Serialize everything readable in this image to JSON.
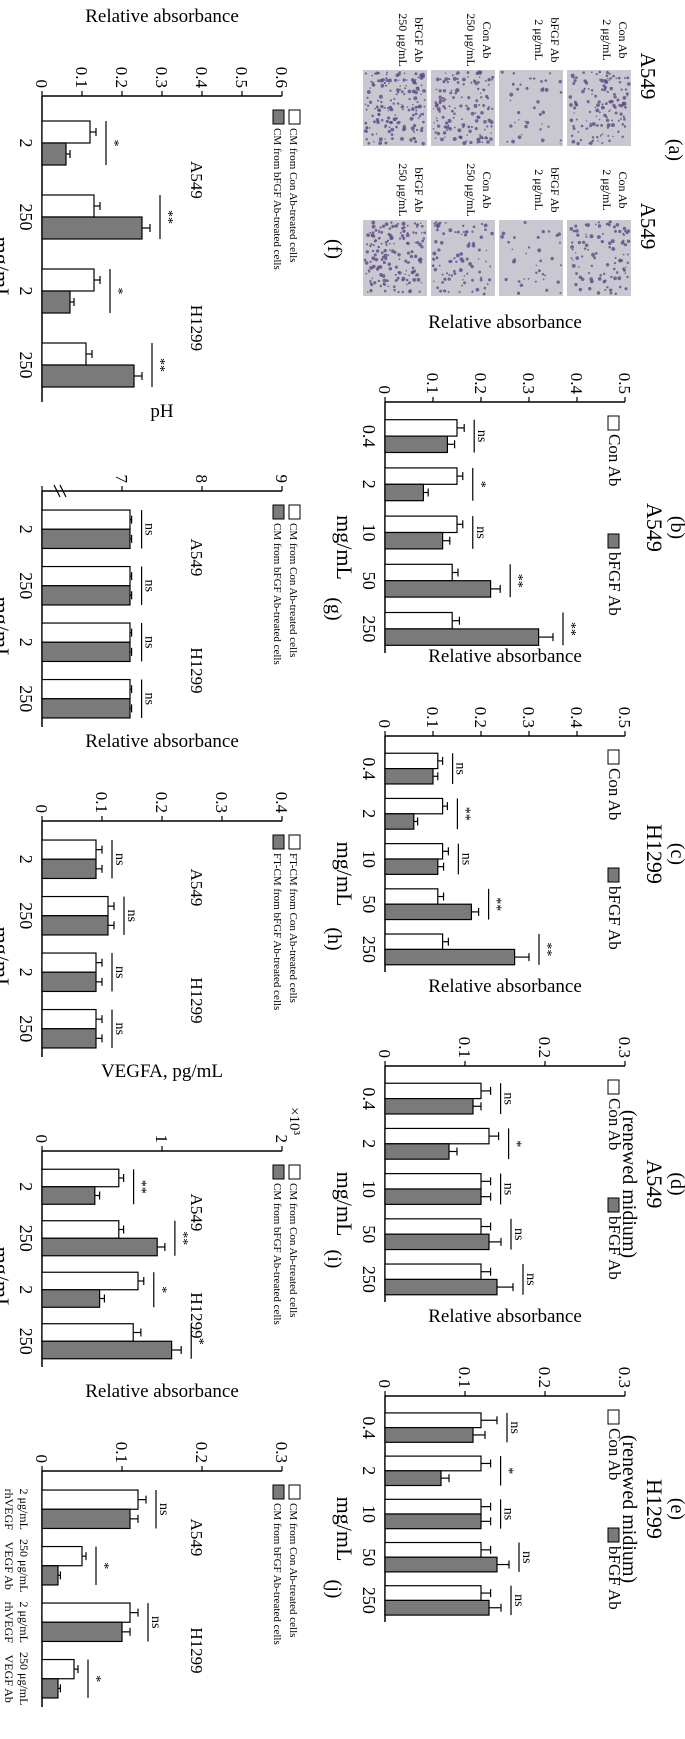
{
  "panel_a": {
    "label": "(a)",
    "rows": [
      {
        "title": "A549",
        "images": [
          {
            "treat": "Con Ab",
            "dose": "2 μg/mL",
            "density": 0.75
          },
          {
            "treat": "bFGF Ab",
            "dose": "2 μg/mL",
            "density": 0.22
          },
          {
            "treat": "Con Ab",
            "dose": "250 μg/mL",
            "density": 0.8
          },
          {
            "treat": "bFGF Ab",
            "dose": "250 μg/mL",
            "density": 0.95
          }
        ]
      },
      {
        "title": "A549",
        "images": [
          {
            "treat": "Con Ab",
            "dose": "2 μg/mL",
            "density": 0.55
          },
          {
            "treat": "bFGF Ab",
            "dose": "2 μg/mL",
            "density": 0.2
          },
          {
            "treat": "Con Ab",
            "dose": "250 μg/mL",
            "density": 0.5
          },
          {
            "treat": "bFGF Ab",
            "dose": "250 μg/mL",
            "density": 0.9
          }
        ]
      }
    ]
  },
  "chart_data": [
    {
      "id": "b",
      "panel": "(b)",
      "title": "A549",
      "type": "bar",
      "categories": [
        "0.4",
        "2",
        "10",
        "50",
        "250"
      ],
      "series": [
        {
          "name": "Con Ab",
          "values": [
            0.15,
            0.15,
            0.15,
            0.14,
            0.14
          ],
          "err": [
            0.015,
            0.012,
            0.012,
            0.012,
            0.015
          ]
        },
        {
          "name": "bFGF Ab",
          "values": [
            0.13,
            0.08,
            0.12,
            0.22,
            0.32
          ],
          "err": [
            0.015,
            0.01,
            0.015,
            0.02,
            0.03
          ]
        }
      ],
      "sig": [
        "ns",
        "*",
        "ns",
        "**",
        "**"
      ],
      "ylim": [
        0,
        0.5
      ],
      "yticks": [
        "0",
        "0.1",
        "0.2",
        "0.3",
        "0.4",
        "0.5"
      ],
      "ylabel": "Relative absorbance",
      "xlabel": "mg/mL"
    },
    {
      "id": "c",
      "panel": "(c)",
      "title": "H1299",
      "type": "bar",
      "categories": [
        "0.4",
        "2",
        "10",
        "50",
        "250"
      ],
      "series": [
        {
          "name": "Con Ab",
          "values": [
            0.11,
            0.12,
            0.12,
            0.11,
            0.12
          ],
          "err": [
            0.01,
            0.01,
            0.012,
            0.012,
            0.012
          ]
        },
        {
          "name": "bFGF Ab",
          "values": [
            0.1,
            0.06,
            0.11,
            0.18,
            0.27
          ],
          "err": [
            0.01,
            0.008,
            0.012,
            0.015,
            0.03
          ]
        }
      ],
      "sig": [
        "ns",
        "**",
        "ns",
        "**",
        "**"
      ],
      "ylim": [
        0,
        0.5
      ],
      "yticks": [
        "0",
        "0.1",
        "0.2",
        "0.3",
        "0.4",
        "0.5"
      ],
      "ylabel": "Relative absorbance",
      "xlabel": "mg/mL"
    },
    {
      "id": "d",
      "panel": "(d)",
      "title": "A549",
      "title2": "(renewed midium)",
      "type": "bar",
      "categories": [
        "0.4",
        "2",
        "10",
        "50",
        "250"
      ],
      "series": [
        {
          "name": "Con Ab",
          "values": [
            0.12,
            0.13,
            0.12,
            0.12,
            0.12
          ],
          "err": [
            0.012,
            0.012,
            0.012,
            0.012,
            0.012
          ]
        },
        {
          "name": "bFGF Ab",
          "values": [
            0.11,
            0.08,
            0.12,
            0.13,
            0.14
          ],
          "err": [
            0.01,
            0.01,
            0.012,
            0.015,
            0.02
          ]
        }
      ],
      "sig": [
        "ns",
        "*",
        "ns",
        "ns",
        "ns"
      ],
      "ylim": [
        0,
        0.3
      ],
      "yticks": [
        "0",
        "0.1",
        "0.2",
        "0.3"
      ],
      "ylabel": "Relative absorbance",
      "xlabel": "mg/mL"
    },
    {
      "id": "e",
      "panel": "(e)",
      "title": "H1299",
      "title2": "(renewed midium)",
      "type": "bar",
      "categories": [
        "0.4",
        "2",
        "10",
        "50",
        "250"
      ],
      "series": [
        {
          "name": "Con Ab",
          "values": [
            0.12,
            0.12,
            0.12,
            0.12,
            0.12
          ],
          "err": [
            0.02,
            0.012,
            0.012,
            0.012,
            0.012
          ]
        },
        {
          "name": "bFGF Ab",
          "values": [
            0.11,
            0.07,
            0.12,
            0.14,
            0.13
          ],
          "err": [
            0.015,
            0.01,
            0.012,
            0.015,
            0.015
          ]
        }
      ],
      "sig": [
        "ns",
        "*",
        "ns",
        "ns",
        "ns"
      ],
      "ylim": [
        0,
        0.3
      ],
      "yticks": [
        "0",
        "0.1",
        "0.2",
        "0.3"
      ],
      "ylabel": "Relative absorbance",
      "xlabel": "mg/mL"
    },
    {
      "id": "f",
      "panel": "(f)",
      "type": "bar",
      "categories": [
        "2",
        "250",
        "2",
        "250"
      ],
      "groups": [
        "A549",
        "H1299"
      ],
      "series": [
        {
          "name": "CM from Con Ab-treated cells",
          "values": [
            0.12,
            0.13,
            0.13,
            0.11
          ],
          "err": [
            0.015,
            0.015,
            0.015,
            0.015
          ]
        },
        {
          "name": "CM from bFGF Ab-treated cells",
          "values": [
            0.06,
            0.25,
            0.07,
            0.23
          ],
          "err": [
            0.01,
            0.02,
            0.01,
            0.02
          ]
        }
      ],
      "sig": [
        "*",
        "**",
        "*",
        "**"
      ],
      "ylim": [
        0,
        0.6
      ],
      "yticks": [
        "0",
        "0.1",
        "0.2",
        "0.3",
        "0.4",
        "0.5",
        "0.6"
      ],
      "ylabel": "Relative absorbance",
      "xlabel": "mg/mL"
    },
    {
      "id": "g",
      "panel": "(g)",
      "type": "bar",
      "categories": [
        "2",
        "250",
        "2",
        "250"
      ],
      "groups": [
        "A549",
        "H1299"
      ],
      "series": [
        {
          "name": "CM from Con Ab-treated cells",
          "values": [
            7.1,
            7.1,
            7.1,
            7.1
          ],
          "err": [
            0.02,
            0.02,
            0.02,
            0.02
          ]
        },
        {
          "name": "CM from bFGF Ab-treated cells",
          "values": [
            7.1,
            7.1,
            7.1,
            7.1
          ],
          "err": [
            0.02,
            0.02,
            0.02,
            0.02
          ]
        }
      ],
      "sig": [
        "ns",
        "ns",
        "ns",
        "ns"
      ],
      "ylim": [
        6,
        9
      ],
      "yticks": [
        "",
        "7",
        "8",
        "9"
      ],
      "axis_break": true,
      "ylabel": "pH",
      "xlabel": "mg/mL"
    },
    {
      "id": "h",
      "panel": "(h)",
      "type": "bar",
      "categories": [
        "2",
        "250",
        "2",
        "250"
      ],
      "groups": [
        "A549",
        "H1299"
      ],
      "series": [
        {
          "name": "FT-CM from Con Ab-treated cells",
          "values": [
            0.09,
            0.11,
            0.09,
            0.09
          ],
          "err": [
            0.01,
            0.01,
            0.01,
            0.01
          ]
        },
        {
          "name": "FT-CM from bFGF Ab-treated cells",
          "values": [
            0.09,
            0.11,
            0.09,
            0.09
          ],
          "err": [
            0.01,
            0.01,
            0.01,
            0.01
          ]
        }
      ],
      "sig": [
        "ns",
        "ns",
        "ns",
        "ns"
      ],
      "ylim": [
        0,
        0.4
      ],
      "yticks": [
        "0",
        "0.1",
        "0.2",
        "0.3",
        "0.4"
      ],
      "ylabel": "Relative absorbance",
      "xlabel": "mg/mL"
    },
    {
      "id": "i",
      "panel": "(i)",
      "type": "bar",
      "categories": [
        "2",
        "250",
        "2",
        "250"
      ],
      "groups": [
        "A549",
        "H1299"
      ],
      "series": [
        {
          "name": "CM from Con Ab-treated cells",
          "values": [
            0.8,
            0.8,
            1.0,
            0.95
          ],
          "err": [
            0.05,
            0.05,
            0.06,
            0.08
          ]
        },
        {
          "name": "CM from bFGF Ab-treated cells",
          "values": [
            0.55,
            1.2,
            0.6,
            1.35
          ],
          "err": [
            0.05,
            0.08,
            0.05,
            0.1
          ]
        }
      ],
      "sig": [
        "**",
        "**",
        "*",
        "*"
      ],
      "ylim": [
        0,
        2.5
      ],
      "yticks": [
        "0",
        "1",
        "2"
      ],
      "yexp": "×10³",
      "ylabel": "VEGFA, pg/mL",
      "xlabel": "mg/mL"
    },
    {
      "id": "j",
      "panel": "(j)",
      "type": "bar",
      "categories": [
        "2 μg/mL\nrhVEGF",
        "250 μg/mL\nVEGF Ab",
        "2 μg/mL\nrhVEGF",
        "250 μg/mL\nVEGF Ab"
      ],
      "groups": [
        "A549",
        "H1299"
      ],
      "series": [
        {
          "name": "CM from Con Ab-treated cells",
          "values": [
            0.12,
            0.05,
            0.11,
            0.04
          ],
          "err": [
            0.01,
            0.005,
            0.01,
            0.005
          ]
        },
        {
          "name": "CM from bFGF Ab-treated cells",
          "values": [
            0.11,
            0.02,
            0.1,
            0.02
          ],
          "err": [
            0.01,
            0.003,
            0.01,
            0.003
          ]
        }
      ],
      "sig": [
        "ns",
        "*",
        "ns",
        "*"
      ],
      "ylim": [
        0,
        0.3
      ],
      "yticks": [
        "0",
        "0.1",
        "0.2",
        "0.3"
      ],
      "ylabel": "Relative absorbance",
      "xlabel": ""
    }
  ]
}
